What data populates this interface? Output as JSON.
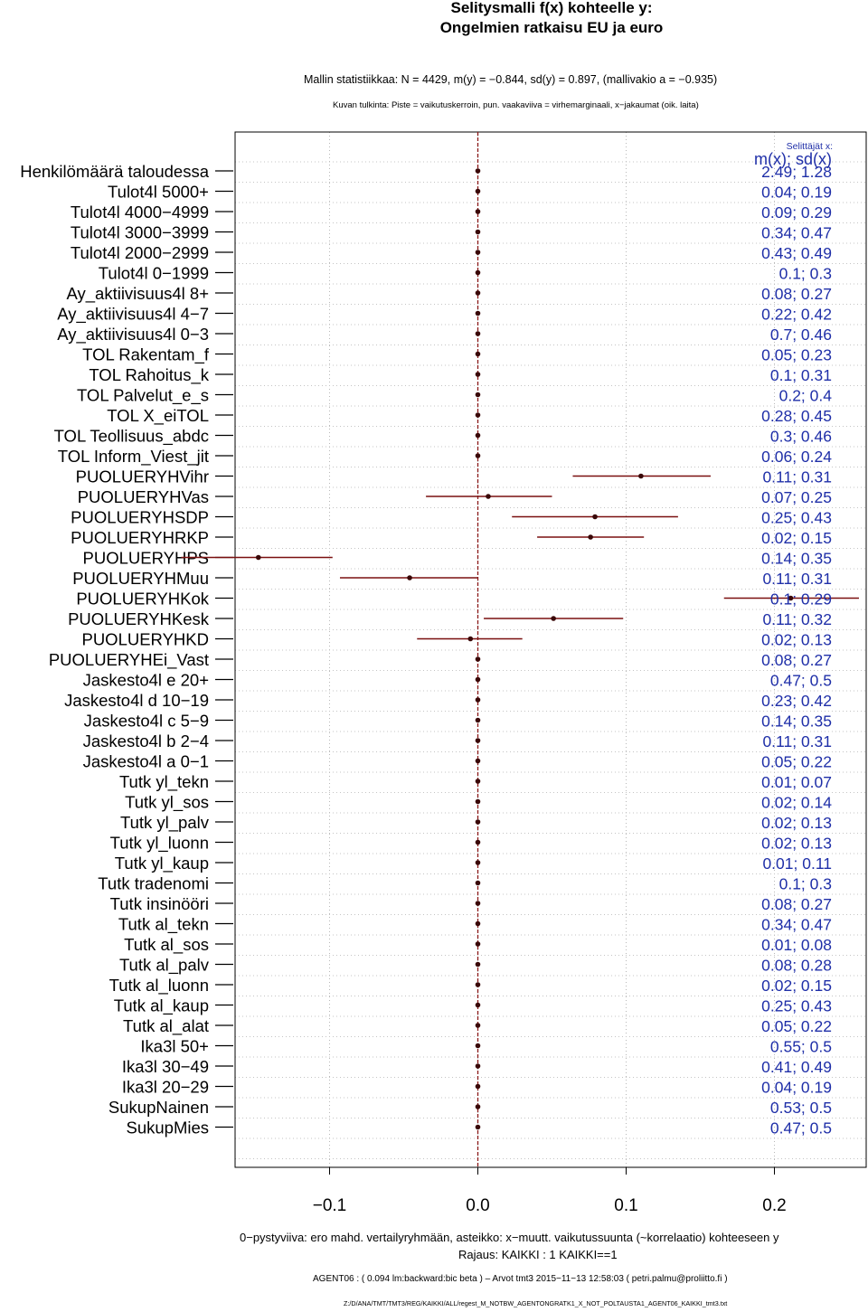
{
  "title_line1": "Selitysmalli f(x) kohteelle y:",
  "title_line2": "Ongelmien ratkaisu EU ja euro",
  "stats_line": "Mallin statistiikkaa: N = 4429, m(y) = −0.844, sd(y) = 0.897, (mallivakio a = −0.935)",
  "interpretation_line": "Kuvan tulkinta: Piste = vaikutuskerroin, pun. vaakaviiva = virhemarginaali, x−jakaumat (oik. laita)",
  "explainers_label": "Selittäjät x:",
  "stats_header": "m(x); sd(x)",
  "footer_line1": "0−pystyviiva: ero mahd. vertailyryhmään, asteikko: x−muutt. vaikutussuunta (~korrelaatio) kohteeseen y",
  "footer_line2": "Rajaus: KAIKKI : 1  KAIKKI==1",
  "footer_line3": "AGENT06 : ( 0.094 lm:backward:bic beta )  –  Arvot tmt3 2015−11−13 12:58:03 ( petri.palmu@proliitto.fi )",
  "footer_line4": "Z:/D/ANA/TMT/TMT3/REG/KAIKKI/ALL/regest_M_NOTBW_AGENTONGRATK1_X_NOT_POLTAUSTA1_AGENT06_KAIKKI_tmt3.txt",
  "colors": {
    "interval": "#7a1010",
    "point": "#3a0808",
    "stats_text": "#1f2fa8",
    "zero_line": "#8b1a1a"
  },
  "chart_data": {
    "type": "scatter",
    "subtype": "coefficient-interval",
    "xlim": [
      -0.15,
      0.25
    ],
    "xticks": [
      -0.1,
      0.0,
      0.1,
      0.2
    ],
    "xtick_labels": [
      "−0.1",
      "0.0",
      "0.1",
      "0.2"
    ],
    "grid": true,
    "rows": [
      {
        "label": "Henkilömäärä taloudessa",
        "coef": 0,
        "low": 0,
        "high": 0,
        "stats": "2.49; 1.28"
      },
      {
        "label": "Tulot4l 5000+",
        "coef": 0,
        "low": 0,
        "high": 0,
        "stats": "0.04; 0.19"
      },
      {
        "label": "Tulot4l 4000−4999",
        "coef": 0,
        "low": 0,
        "high": 0,
        "stats": "0.09; 0.29"
      },
      {
        "label": "Tulot4l 3000−3999",
        "coef": 0,
        "low": 0,
        "high": 0,
        "stats": "0.34; 0.47"
      },
      {
        "label": "Tulot4l 2000−2999",
        "coef": 0,
        "low": 0,
        "high": 0,
        "stats": "0.43; 0.49"
      },
      {
        "label": "Tulot4l 0−1999",
        "coef": 0,
        "low": 0,
        "high": 0,
        "stats": "0.1; 0.3"
      },
      {
        "label": "Ay_aktiivisuus4l 8+",
        "coef": 0,
        "low": 0,
        "high": 0,
        "stats": "0.08; 0.27"
      },
      {
        "label": "Ay_aktiivisuus4l 4−7",
        "coef": 0,
        "low": 0,
        "high": 0,
        "stats": "0.22; 0.42"
      },
      {
        "label": "Ay_aktiivisuus4l 0−3",
        "coef": 0,
        "low": 0,
        "high": 0,
        "stats": "0.7; 0.46"
      },
      {
        "label": "TOL Rakentam_f",
        "coef": 0,
        "low": 0,
        "high": 0,
        "stats": "0.05; 0.23"
      },
      {
        "label": "TOL Rahoitus_k",
        "coef": 0,
        "low": 0,
        "high": 0,
        "stats": "0.1; 0.31"
      },
      {
        "label": "TOL Palvelut_e_s",
        "coef": 0,
        "low": 0,
        "high": 0,
        "stats": "0.2; 0.4"
      },
      {
        "label": "TOL X_eiTOL",
        "coef": 0,
        "low": 0,
        "high": 0,
        "stats": "0.28; 0.45"
      },
      {
        "label": "TOL Teollisuus_abdc",
        "coef": 0,
        "low": 0,
        "high": 0,
        "stats": "0.3; 0.46"
      },
      {
        "label": "TOL Inform_Viest_jit",
        "coef": 0,
        "low": 0,
        "high": 0,
        "stats": "0.06; 0.24"
      },
      {
        "label": "PUOLUERYHVihr",
        "coef": 0.11,
        "low": 0.064,
        "high": 0.157,
        "stats": "0.11; 0.31"
      },
      {
        "label": "PUOLUERYHVas",
        "coef": 0.007,
        "low": -0.035,
        "high": 0.05,
        "stats": "0.07; 0.25"
      },
      {
        "label": "PUOLUERYHSDP",
        "coef": 0.079,
        "low": 0.023,
        "high": 0.135,
        "stats": "0.25; 0.43"
      },
      {
        "label": "PUOLUERYHRKP",
        "coef": 0.076,
        "low": 0.04,
        "high": 0.112,
        "stats": "0.02; 0.15"
      },
      {
        "label": "PUOLUERYHPS",
        "coef": -0.148,
        "low": -0.2,
        "high": -0.098,
        "stats": "0.14; 0.35"
      },
      {
        "label": "PUOLUERYHMuu",
        "coef": -0.046,
        "low": -0.093,
        "high": 0.0,
        "stats": "0.11; 0.31"
      },
      {
        "label": "PUOLUERYHKok",
        "coef": 0.211,
        "low": 0.166,
        "high": 0.257,
        "stats": "0.1; 0.29"
      },
      {
        "label": "PUOLUERYHKesk",
        "coef": 0.051,
        "low": 0.004,
        "high": 0.098,
        "stats": "0.11; 0.32"
      },
      {
        "label": "PUOLUERYHKD",
        "coef": -0.005,
        "low": -0.041,
        "high": 0.03,
        "stats": "0.02; 0.13"
      },
      {
        "label": "PUOLUERYHEi_Vast",
        "coef": 0,
        "low": 0,
        "high": 0,
        "stats": "0.08; 0.27"
      },
      {
        "label": "Jaskesto4l e 20+",
        "coef": 0,
        "low": 0,
        "high": 0,
        "stats": "0.47; 0.5"
      },
      {
        "label": "Jaskesto4l d 10−19",
        "coef": 0,
        "low": 0,
        "high": 0,
        "stats": "0.23; 0.42"
      },
      {
        "label": "Jaskesto4l c 5−9",
        "coef": 0,
        "low": 0,
        "high": 0,
        "stats": "0.14; 0.35"
      },
      {
        "label": "Jaskesto4l b 2−4",
        "coef": 0,
        "low": 0,
        "high": 0,
        "stats": "0.11; 0.31"
      },
      {
        "label": "Jaskesto4l a 0−1",
        "coef": 0,
        "low": 0,
        "high": 0,
        "stats": "0.05; 0.22"
      },
      {
        "label": "Tutk yl_tekn",
        "coef": 0,
        "low": 0,
        "high": 0,
        "stats": "0.01; 0.07"
      },
      {
        "label": "Tutk yl_sos",
        "coef": 0,
        "low": 0,
        "high": 0,
        "stats": "0.02; 0.14"
      },
      {
        "label": "Tutk yl_palv",
        "coef": 0,
        "low": 0,
        "high": 0,
        "stats": "0.02; 0.13"
      },
      {
        "label": "Tutk yl_luonn",
        "coef": 0,
        "low": 0,
        "high": 0,
        "stats": "0.02; 0.13"
      },
      {
        "label": "Tutk yl_kaup",
        "coef": 0,
        "low": 0,
        "high": 0,
        "stats": "0.01; 0.11"
      },
      {
        "label": "Tutk tradenomi",
        "coef": 0,
        "low": 0,
        "high": 0,
        "stats": "0.1; 0.3"
      },
      {
        "label": "Tutk insinööri",
        "coef": 0,
        "low": 0,
        "high": 0,
        "stats": "0.08; 0.27"
      },
      {
        "label": "Tutk al_tekn",
        "coef": 0,
        "low": 0,
        "high": 0,
        "stats": "0.34; 0.47"
      },
      {
        "label": "Tutk al_sos",
        "coef": 0,
        "low": 0,
        "high": 0,
        "stats": "0.01; 0.08"
      },
      {
        "label": "Tutk al_palv",
        "coef": 0,
        "low": 0,
        "high": 0,
        "stats": "0.08; 0.28"
      },
      {
        "label": "Tutk al_luonn",
        "coef": 0,
        "low": 0,
        "high": 0,
        "stats": "0.02; 0.15"
      },
      {
        "label": "Tutk al_kaup",
        "coef": 0,
        "low": 0,
        "high": 0,
        "stats": "0.25; 0.43"
      },
      {
        "label": "Tutk al_alat",
        "coef": 0,
        "low": 0,
        "high": 0,
        "stats": "0.05; 0.22"
      },
      {
        "label": "Ika3l 50+",
        "coef": 0,
        "low": 0,
        "high": 0,
        "stats": "0.55; 0.5"
      },
      {
        "label": "Ika3l 30−49",
        "coef": 0,
        "low": 0,
        "high": 0,
        "stats": "0.41; 0.49"
      },
      {
        "label": "Ika3l 20−29",
        "coef": 0,
        "low": 0,
        "high": 0,
        "stats": "0.04; 0.19"
      },
      {
        "label": "SukupNainen",
        "coef": 0,
        "low": 0,
        "high": 0,
        "stats": "0.53; 0.5"
      },
      {
        "label": "SukupMies",
        "coef": 0,
        "low": 0,
        "high": 0,
        "stats": "0.47; 0.5"
      }
    ]
  }
}
